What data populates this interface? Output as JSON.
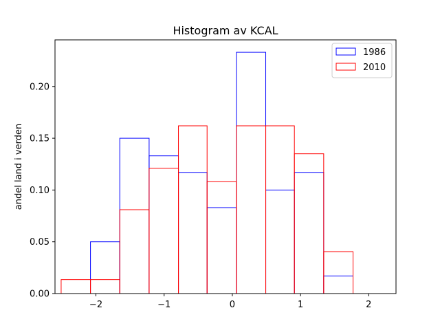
{
  "chart_data": {
    "type": "histogram",
    "title": "Histogram av KCAL",
    "xlabel": "",
    "ylabel": "andel land i verden",
    "xlim": [
      -2.6,
      2.4
    ],
    "ylim": [
      0,
      0.245
    ],
    "xticks": [
      -2,
      -1,
      0,
      1,
      2
    ],
    "xtick_labels": [
      "−2",
      "−1",
      "0",
      "1",
      "2"
    ],
    "yticks": [
      0.0,
      0.05,
      0.1,
      0.15,
      0.2
    ],
    "ytick_labels": [
      "0.00",
      "0.05",
      "0.10",
      "0.15",
      "0.20"
    ],
    "legend_position": "top-right",
    "series": [
      {
        "name": "1986",
        "color": "#0000ff",
        "bin_edges": [
          -2.08,
          -1.65,
          -1.22,
          -0.79,
          -0.37,
          0.06,
          0.49,
          0.91,
          1.34,
          1.77,
          2.2
        ],
        "values": [
          0.05,
          0.15,
          0.133,
          0.117,
          0.083,
          0.233,
          0.1,
          0.117,
          0.017,
          0.0
        ]
      },
      {
        "name": "2010",
        "color": "#ff0000",
        "bin_edges": [
          -2.51,
          -2.08,
          -1.65,
          -1.22,
          -0.79,
          -0.37,
          0.06,
          0.49,
          0.91,
          1.34,
          1.77
        ],
        "values": [
          0.0135,
          0.0135,
          0.081,
          0.121,
          0.162,
          0.108,
          0.162,
          0.162,
          0.135,
          0.0405
        ]
      }
    ]
  }
}
